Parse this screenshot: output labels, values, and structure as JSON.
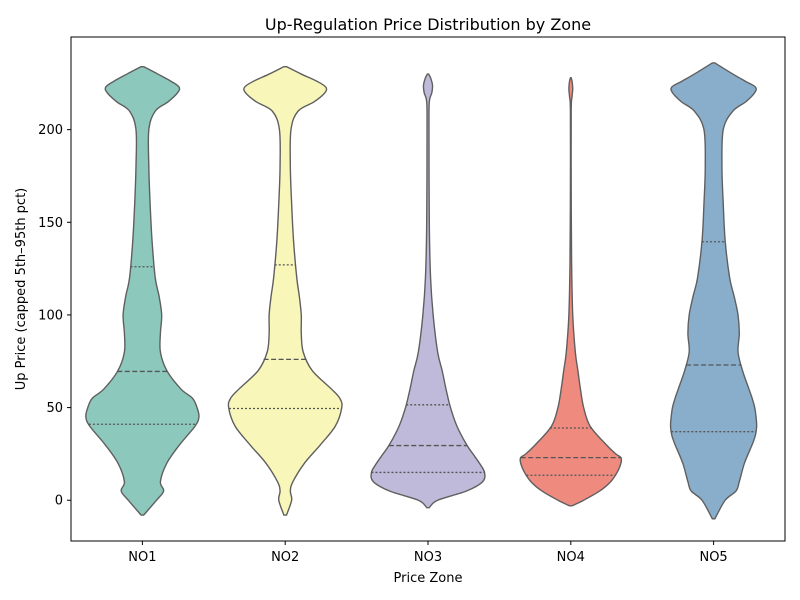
{
  "chart_data": {
    "type": "violin",
    "title": "Up-Regulation Price Distribution by Zone",
    "xlabel": "Price Zone",
    "ylabel": "Up Price (capped 5th–95th pct)",
    "categories": [
      "NO1",
      "NO2",
      "NO3",
      "NO4",
      "NO5"
    ],
    "ylim": [
      -22,
      250
    ],
    "yticks": [
      0,
      50,
      100,
      150,
      200
    ],
    "grid": false,
    "series": [
      {
        "category": "NO1",
        "color": "#8dc8bc",
        "min": -8,
        "max": 234,
        "quartiles": [
          41,
          69.5,
          126
        ],
        "profile": [
          [
            -8,
            0.02
          ],
          [
            0,
            0.22
          ],
          [
            5,
            0.33
          ],
          [
            10,
            0.28
          ],
          [
            20,
            0.38
          ],
          [
            30,
            0.58
          ],
          [
            40,
            0.82
          ],
          [
            45,
            0.88
          ],
          [
            50,
            0.85
          ],
          [
            55,
            0.78
          ],
          [
            60,
            0.6
          ],
          [
            70,
            0.38
          ],
          [
            80,
            0.28
          ],
          [
            90,
            0.28
          ],
          [
            100,
            0.3
          ],
          [
            110,
            0.26
          ],
          [
            120,
            0.2
          ],
          [
            140,
            0.15
          ],
          [
            160,
            0.12
          ],
          [
            180,
            0.1
          ],
          [
            200,
            0.1
          ],
          [
            210,
            0.2
          ],
          [
            215,
            0.4
          ],
          [
            220,
            0.55
          ],
          [
            223,
            0.57
          ],
          [
            226,
            0.45
          ],
          [
            230,
            0.24
          ],
          [
            234,
            0.02
          ]
        ]
      },
      {
        "category": "NO2",
        "color": "#f8f7b9",
        "min": -8,
        "max": 234,
        "quartiles": [
          49.5,
          76,
          127
        ],
        "profile": [
          [
            -8,
            0.02
          ],
          [
            0,
            0.1
          ],
          [
            5,
            0.08
          ],
          [
            10,
            0.12
          ],
          [
            20,
            0.3
          ],
          [
            30,
            0.55
          ],
          [
            40,
            0.78
          ],
          [
            50,
            0.88
          ],
          [
            55,
            0.85
          ],
          [
            60,
            0.72
          ],
          [
            70,
            0.42
          ],
          [
            80,
            0.28
          ],
          [
            90,
            0.25
          ],
          [
            100,
            0.25
          ],
          [
            110,
            0.22
          ],
          [
            120,
            0.18
          ],
          [
            140,
            0.13
          ],
          [
            160,
            0.1
          ],
          [
            180,
            0.08
          ],
          [
            200,
            0.09
          ],
          [
            210,
            0.2
          ],
          [
            215,
            0.45
          ],
          [
            220,
            0.62
          ],
          [
            223,
            0.63
          ],
          [
            226,
            0.5
          ],
          [
            230,
            0.25
          ],
          [
            234,
            0.02
          ]
        ]
      },
      {
        "category": "NO3",
        "color": "#bfbad9",
        "min": -4,
        "max": 230,
        "quartiles": [
          15,
          29.5,
          51.5
        ],
        "profile": [
          [
            -4,
            0.02
          ],
          [
            0,
            0.15
          ],
          [
            5,
            0.6
          ],
          [
            10,
            0.85
          ],
          [
            15,
            0.88
          ],
          [
            20,
            0.8
          ],
          [
            25,
            0.7
          ],
          [
            30,
            0.6
          ],
          [
            40,
            0.45
          ],
          [
            50,
            0.35
          ],
          [
            60,
            0.28
          ],
          [
            70,
            0.22
          ],
          [
            80,
            0.15
          ],
          [
            100,
            0.08
          ],
          [
            120,
            0.04
          ],
          [
            150,
            0.02
          ],
          [
            200,
            0.015
          ],
          [
            215,
            0.02
          ],
          [
            220,
            0.06
          ],
          [
            224,
            0.07
          ],
          [
            228,
            0.04
          ],
          [
            230,
            0.01
          ]
        ]
      },
      {
        "category": "NO4",
        "color": "#ef8a7f",
        "min": -3,
        "max": 228,
        "quartiles": [
          13.5,
          23,
          39
        ],
        "profile": [
          [
            -3,
            0.02
          ],
          [
            0,
            0.2
          ],
          [
            5,
            0.45
          ],
          [
            10,
            0.62
          ],
          [
            15,
            0.72
          ],
          [
            20,
            0.78
          ],
          [
            23,
            0.78
          ],
          [
            25,
            0.7
          ],
          [
            30,
            0.55
          ],
          [
            40,
            0.3
          ],
          [
            50,
            0.2
          ],
          [
            60,
            0.15
          ],
          [
            70,
            0.11
          ],
          [
            80,
            0.07
          ],
          [
            100,
            0.03
          ],
          [
            130,
            0.012
          ],
          [
            170,
            0.006
          ],
          [
            210,
            0.006
          ],
          [
            218,
            0.02
          ],
          [
            222,
            0.03
          ],
          [
            226,
            0.02
          ],
          [
            228,
            0.005
          ]
        ]
      },
      {
        "category": "NO5",
        "color": "#89aecc",
        "min": -10,
        "max": 236,
        "quartiles": [
          37,
          73,
          139.5
        ],
        "profile": [
          [
            -10,
            0.02
          ],
          [
            0,
            0.18
          ],
          [
            5,
            0.35
          ],
          [
            10,
            0.4
          ],
          [
            20,
            0.48
          ],
          [
            30,
            0.6
          ],
          [
            35,
            0.65
          ],
          [
            40,
            0.67
          ],
          [
            45,
            0.66
          ],
          [
            50,
            0.64
          ],
          [
            55,
            0.6
          ],
          [
            60,
            0.55
          ],
          [
            70,
            0.45
          ],
          [
            80,
            0.38
          ],
          [
            90,
            0.4
          ],
          [
            100,
            0.38
          ],
          [
            110,
            0.32
          ],
          [
            120,
            0.25
          ],
          [
            140,
            0.18
          ],
          [
            160,
            0.15
          ],
          [
            180,
            0.13
          ],
          [
            200,
            0.15
          ],
          [
            210,
            0.3
          ],
          [
            215,
            0.5
          ],
          [
            220,
            0.64
          ],
          [
            223,
            0.65
          ],
          [
            226,
            0.5
          ],
          [
            230,
            0.3
          ],
          [
            236,
            0.02
          ]
        ]
      }
    ]
  }
}
